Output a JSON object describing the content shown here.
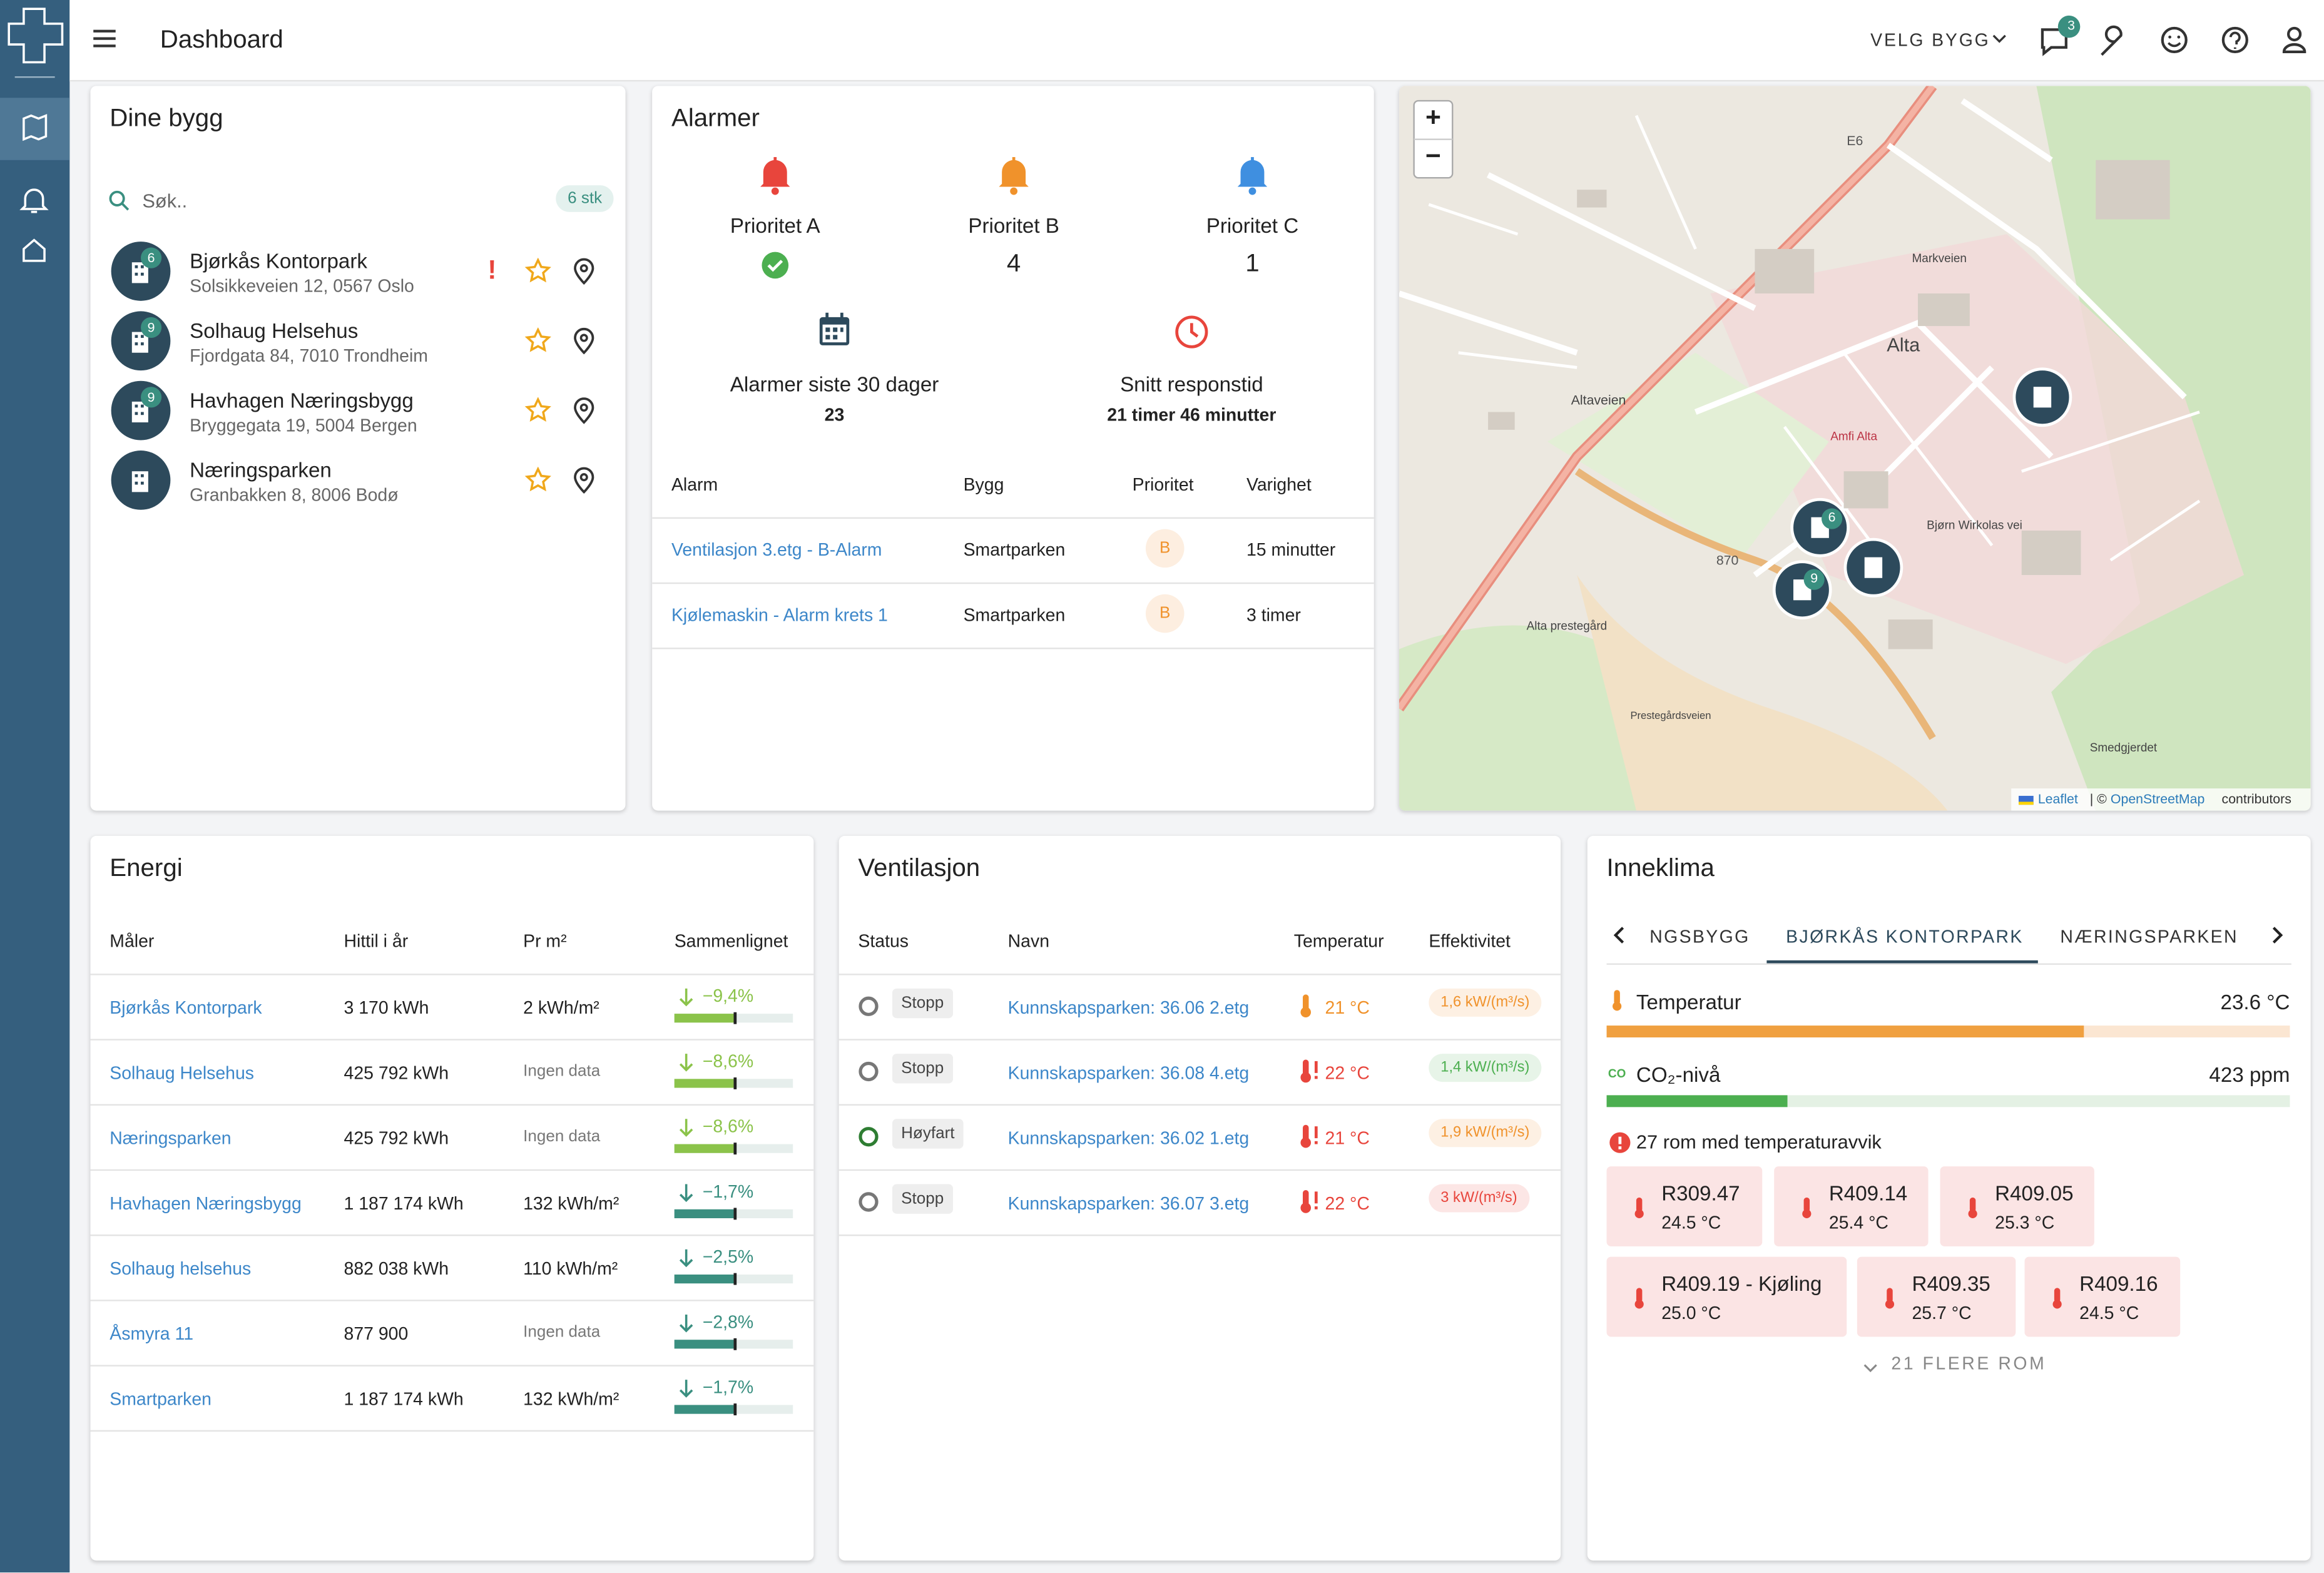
{
  "header": {
    "title": "Dashboard",
    "menu": "VELG BYGG",
    "badge": "3"
  },
  "buildings": {
    "title": "Dine bygg",
    "search": "Søk..",
    "count": "6 stk",
    "items": [
      {
        "name": "Bjørkås Kontorpark",
        "address": "Solsikkeveien 12, 0567 Oslo",
        "badge": "6",
        "flag": "!"
      },
      {
        "name": "Solhaug Helsehus",
        "address": "Fjordgata 84, 7010 Trondheim",
        "badge": "9"
      },
      {
        "name": "Havhagen Næringsbygg",
        "address": "Bryggegata 19, 5004 Bergen",
        "badge": "9"
      },
      {
        "name": "Næringsparken",
        "address": "Granbakken 8, 8006 Bodø"
      }
    ]
  },
  "alarms": {
    "title": "Alarmer",
    "priorities": [
      {
        "label": "Prioritet A",
        "color": "#e8453c"
      },
      {
        "label": "Prioritet B",
        "value": 4,
        "color": "#f0922b"
      },
      {
        "label": "Prioritet C",
        "value": 1,
        "color": "#3f8fe0"
      }
    ],
    "last30_label": "Alarmer siste 30 dager",
    "last30_value": 23,
    "response_label": "Snitt responstid",
    "response_value": "21 timer 46 minutter",
    "columns": [
      "Alarm",
      "Bygg",
      "Prioritet",
      "Varighet"
    ],
    "rows": [
      [
        "Ventilasjon 3.etg - B-Alarm",
        "Smartparken",
        "B",
        "15 minutter"
      ],
      [
        "Kjølemaskin - Alarm krets 1",
        "Smartparken",
        "B",
        "3 timer"
      ]
    ]
  },
  "map": {
    "zoom_in": "+",
    "zoom_out": "−",
    "labels": [
      "Alta",
      "E6",
      "870",
      "Altaveien",
      "Markveien",
      "Bjørn Wirkolas vei",
      "Amfi Alta",
      "Alta prestegård",
      "Smedgjerdet",
      "Prestegårdsveien"
    ],
    "markers": [
      "6",
      "9"
    ],
    "attribution": [
      "Leaflet",
      "| ©",
      "OpenStreetMap",
      "contributors"
    ]
  },
  "energy": {
    "title": "Energi",
    "columns": [
      "Måler",
      "Hittil i år",
      "Pr m²",
      "Sammenlignet"
    ],
    "rows": [
      {
        "meter": "Bjørkås Kontorpark",
        "year": "3 170 kWh",
        "per_m2": "2 kWh/m²",
        "compared": "−9,4%",
        "color": "#8bc34a"
      },
      {
        "meter": "Solhaug Helsehus",
        "year": "425 792 kWh",
        "per_m2": "Ingen data",
        "compared": "−8,6%",
        "color": "#8bc34a"
      },
      {
        "meter": "Næringsparken",
        "year": "425 792 kWh",
        "per_m2": "Ingen data",
        "compared": "−8,6%",
        "color": "#8bc34a"
      },
      {
        "meter": "Havhagen Næringsbygg",
        "year": "1 187 174 kWh",
        "per_m2": "132 kWh/m²",
        "compared": "−1,7%",
        "color": "#3a8f80"
      },
      {
        "meter": "Solhaug helsehus",
        "year": "882 038 kWh",
        "per_m2": "110 kWh/m²",
        "compared": "−2,5%",
        "color": "#3a8f80"
      },
      {
        "meter": "Åsmyra 11",
        "year": "877 900",
        "per_m2": "Ingen data",
        "compared": "−2,8%",
        "color": "#3a8f80"
      },
      {
        "meter": "Smartparken",
        "year": "1 187 174 kWh",
        "per_m2": "132 kWh/m²",
        "compared": "−1,7%",
        "color": "#3a8f80"
      }
    ]
  },
  "ventilation": {
    "title": "Ventilasjon",
    "columns": [
      "Status",
      "Navn",
      "Temperatur",
      "Effektivitet"
    ],
    "rows": [
      {
        "status": "Stopp",
        "name": "Kunnskapsparken: 36.06 2.etg",
        "temp": "21 °C",
        "eff": "1,6 kW/(m³/s)",
        "color": "#f0922b"
      },
      {
        "status": "Stopp",
        "name": "Kunnskapsparken: 36.08 4.etg",
        "temp": "22 °C",
        "eff": "1,4 kW/(m³/s)",
        "color": "#4caf50"
      },
      {
        "status": "Høyfart",
        "name": "Kunnskapsparken: 36.02 1.etg",
        "temp": "21 °C",
        "eff": "1,9 kW/(m³/s)",
        "color": "#f0922b"
      },
      {
        "status": "Stopp",
        "name": "Kunnskapsparken: 36.07 3.etg",
        "temp": "22 °C",
        "eff": "3 kW/(m³/s)",
        "color": "#e8453c"
      }
    ]
  },
  "climate": {
    "title": "Inneklima",
    "tabs": [
      "NGSBYGG",
      "BJØRKÅS KONTORPARK",
      "NÆRINGSPARKEN"
    ],
    "temp_label": "Temperatur",
    "temp_value": "23.6 °C",
    "co2_label": "CO₂-nivå",
    "co2_value": "423 ppm",
    "deviation": "27 rom med temperaturavvik",
    "rooms": [
      {
        "name": "R309.47",
        "temp": "24.5 °C"
      },
      {
        "name": "R409.14",
        "temp": "25.4 °C"
      },
      {
        "name": "R409.05",
        "temp": "25.3 °C"
      },
      {
        "name": "R409.19 - Kjøling",
        "temp": "25.0 °C"
      },
      {
        "name": "R409.35",
        "temp": "25.7 °C"
      },
      {
        "name": "R409.16",
        "temp": "24.5 °C"
      }
    ],
    "more": "21 FLERE ROM"
  }
}
